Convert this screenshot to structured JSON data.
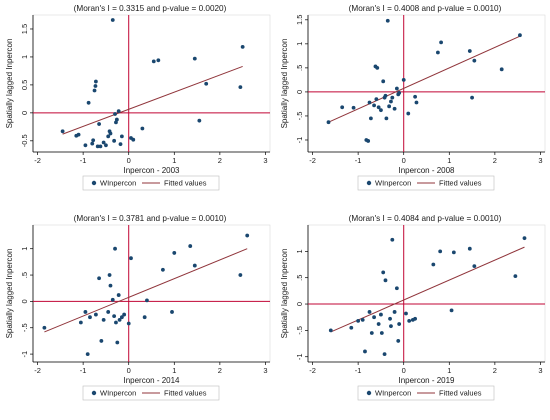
{
  "chart_data": [
    {
      "type": "scatter",
      "title": "(Moran's I = 0.3315 and p-value = 0.0020)",
      "xlabel": "Inpercon - 2003",
      "ylabel": "Spatially lagged Inpercon",
      "xlim": [
        -2.1,
        3.1
      ],
      "ylim": [
        -0.7,
        1.75
      ],
      "xticks": [
        "-2",
        "-1",
        "0",
        "1",
        "2",
        "3"
      ],
      "xtick_values": [
        -2,
        -1,
        0,
        1,
        2,
        3
      ],
      "yticks": [
        "-0.5",
        "0",
        "0.5",
        "1",
        "1.5"
      ],
      "ytick_values": [
        -0.5,
        0,
        0.5,
        1,
        1.5
      ],
      "grid": false,
      "legend_position": "bottom",
      "legend": [
        "WInpercon",
        "Fitted values"
      ],
      "reference_lines": {
        "x": 0,
        "y": 0
      },
      "points": [
        [
          -1.45,
          -0.33
        ],
        [
          -1.15,
          -0.41
        ],
        [
          -1.1,
          -0.39
        ],
        [
          -0.95,
          -0.58
        ],
        [
          -0.88,
          0.18
        ],
        [
          -0.8,
          -0.55
        ],
        [
          -0.78,
          -0.49
        ],
        [
          -0.75,
          0.4
        ],
        [
          -0.73,
          0.48
        ],
        [
          -0.72,
          0.56
        ],
        [
          -0.68,
          -0.6
        ],
        [
          -0.65,
          -0.2
        ],
        [
          -0.62,
          -0.6
        ],
        [
          -0.55,
          -0.53
        ],
        [
          -0.5,
          -0.58
        ],
        [
          -0.45,
          -0.42
        ],
        [
          -0.42,
          -0.33
        ],
        [
          -0.4,
          -0.37
        ],
        [
          -0.35,
          1.66
        ],
        [
          -0.32,
          -0.5
        ],
        [
          -0.3,
          -0.02
        ],
        [
          -0.28,
          -0.17
        ],
        [
          -0.26,
          -0.12
        ],
        [
          -0.22,
          0.03
        ],
        [
          -0.18,
          -0.56
        ],
        [
          -0.15,
          -0.42
        ],
        [
          0.05,
          -0.45
        ],
        [
          0.1,
          -0.48
        ],
        [
          0.3,
          -0.28
        ],
        [
          0.55,
          0.92
        ],
        [
          0.65,
          0.94
        ],
        [
          1.45,
          0.97
        ],
        [
          1.55,
          -0.14
        ],
        [
          1.7,
          0.52
        ],
        [
          2.45,
          0.46
        ],
        [
          2.5,
          1.18
        ]
      ],
      "fitted_line": [
        [
          -1.45,
          -0.38
        ],
        [
          2.5,
          0.83
        ]
      ]
    },
    {
      "type": "scatter",
      "title": "(Moran's I = 0.4008 and p-value = 0.0010)",
      "xlabel": "Inpercon - 2008",
      "ylabel": "Spatially lagged Inpercon",
      "xlim": [
        -2.1,
        3.1
      ],
      "ylim": [
        -1.25,
        1.6
      ],
      "xticks": [
        "-2",
        "-1",
        "0",
        "1",
        "2",
        "3"
      ],
      "xtick_values": [
        -2,
        -1,
        0,
        1,
        2,
        3
      ],
      "yticks": [
        "-1",
        "-.5",
        "0",
        ".5",
        "1",
        "1.5"
      ],
      "ytick_values": [
        -1,
        -0.5,
        0,
        0.5,
        1,
        1.5
      ],
      "grid": false,
      "legend_position": "bottom",
      "legend": [
        "WInpercon",
        "Fitted values"
      ],
      "reference_lines": {
        "x": 0,
        "y": 0
      },
      "points": [
        [
          -1.65,
          -0.63
        ],
        [
          -1.35,
          -0.32
        ],
        [
          -1.1,
          -0.33
        ],
        [
          -0.82,
          -1.0
        ],
        [
          -0.78,
          -1.02
        ],
        [
          -0.75,
          -0.22
        ],
        [
          -0.72,
          -0.55
        ],
        [
          -0.65,
          -0.28
        ],
        [
          -0.62,
          0.53
        ],
        [
          -0.6,
          -0.15
        ],
        [
          -0.58,
          0.5
        ],
        [
          -0.55,
          -0.32
        ],
        [
          -0.5,
          -0.38
        ],
        [
          -0.45,
          0.22
        ],
        [
          -0.42,
          -0.12
        ],
        [
          -0.4,
          -0.08
        ],
        [
          -0.38,
          -0.55
        ],
        [
          -0.35,
          1.48
        ],
        [
          -0.32,
          -0.3
        ],
        [
          -0.28,
          -0.2
        ],
        [
          -0.25,
          -0.12
        ],
        [
          -0.2,
          -0.35
        ],
        [
          -0.15,
          0.07
        ],
        [
          -0.12,
          -0.05
        ],
        [
          -0.1,
          -0.02
        ],
        [
          0.0,
          0.25
        ],
        [
          0.1,
          -0.45
        ],
        [
          0.25,
          -0.1
        ],
        [
          0.28,
          -0.22
        ],
        [
          0.75,
          0.82
        ],
        [
          0.82,
          1.03
        ],
        [
          1.45,
          0.85
        ],
        [
          1.5,
          -0.12
        ],
        [
          1.55,
          0.65
        ],
        [
          2.15,
          0.47
        ],
        [
          2.55,
          1.18
        ]
      ],
      "fitted_line": [
        [
          -1.65,
          -0.63
        ],
        [
          2.55,
          1.16
        ]
      ]
    },
    {
      "type": "scatter",
      "title": "(Moran's I = 0.3781 and p-value = 0.0010)",
      "xlabel": "Inpercon - 2014",
      "ylabel": "Spatially lagged Inpercon",
      "xlim": [
        -2.1,
        3.1
      ],
      "ylim": [
        -1.15,
        1.45
      ],
      "xticks": [
        "-2",
        "-1",
        "0",
        "1",
        "2",
        "3"
      ],
      "xtick_values": [
        -2,
        -1,
        0,
        1,
        2,
        3
      ],
      "yticks": [
        "-1",
        "-.5",
        "0",
        ".5",
        "1"
      ],
      "ytick_values": [
        -1,
        -0.5,
        0,
        0.5,
        1
      ],
      "grid": false,
      "legend_position": "bottom",
      "legend": [
        "WInpercon",
        "Fitted values"
      ],
      "reference_lines": {
        "x": 0,
        "y": 0
      },
      "points": [
        [
          -1.85,
          -0.5
        ],
        [
          -1.05,
          -0.4
        ],
        [
          -0.95,
          -0.2
        ],
        [
          -0.9,
          -1.0
        ],
        [
          -0.85,
          -0.3
        ],
        [
          -0.72,
          -0.25
        ],
        [
          -0.65,
          0.44
        ],
        [
          -0.6,
          -0.75
        ],
        [
          -0.55,
          -0.35
        ],
        [
          -0.45,
          -0.2
        ],
        [
          -0.42,
          0.5
        ],
        [
          -0.4,
          0.3
        ],
        [
          -0.35,
          0.03
        ],
        [
          -0.32,
          -0.28
        ],
        [
          -0.3,
          1.0
        ],
        [
          -0.28,
          -0.4
        ],
        [
          -0.25,
          -0.78
        ],
        [
          -0.22,
          0.12
        ],
        [
          -0.2,
          -0.35
        ],
        [
          -0.15,
          -0.3
        ],
        [
          -0.1,
          -0.25
        ],
        [
          0.0,
          -0.42
        ],
        [
          0.05,
          0.82
        ],
        [
          0.35,
          -0.3
        ],
        [
          0.4,
          0.02
        ],
        [
          0.75,
          0.6
        ],
        [
          0.95,
          -0.2
        ],
        [
          1.0,
          0.92
        ],
        [
          1.35,
          1.05
        ],
        [
          1.45,
          0.68
        ],
        [
          2.45,
          0.5
        ],
        [
          2.6,
          1.25
        ]
      ],
      "fitted_line": [
        [
          -1.85,
          -0.58
        ],
        [
          2.6,
          1.0
        ]
      ]
    },
    {
      "type": "scatter",
      "title": "(Moran's I = 0.4084 and p-value = 0.0010)",
      "xlabel": "Inpercon - 2019",
      "ylabel": "Spatially lagged Inpercon",
      "xlim": [
        -2.1,
        3.1
      ],
      "ylim": [
        -1.1,
        1.5
      ],
      "xticks": [
        "-2",
        "-1",
        "0",
        "1",
        "2",
        "3"
      ],
      "xtick_values": [
        -2,
        -1,
        0,
        1,
        2,
        3
      ],
      "yticks": [
        "-1",
        "-.5",
        "0",
        ".5",
        "1"
      ],
      "ytick_values": [
        -1,
        -0.5,
        0,
        0.5,
        1
      ],
      "grid": false,
      "legend_position": "bottom",
      "legend": [
        "WInpercon",
        "Fitted values"
      ],
      "reference_lines": {
        "x": 0,
        "y": 0
      },
      "points": [
        [
          -1.6,
          -0.5
        ],
        [
          -1.15,
          -0.45
        ],
        [
          -1.0,
          -0.32
        ],
        [
          -0.9,
          -0.3
        ],
        [
          -0.85,
          -0.9
        ],
        [
          -0.75,
          -0.15
        ],
        [
          -0.7,
          -0.55
        ],
        [
          -0.65,
          -0.25
        ],
        [
          -0.55,
          -0.38
        ],
        [
          -0.5,
          -0.2
        ],
        [
          -0.48,
          -0.55
        ],
        [
          -0.45,
          0.6
        ],
        [
          -0.42,
          -0.95
        ],
        [
          -0.4,
          0.45
        ],
        [
          -0.3,
          -0.28
        ],
        [
          -0.28,
          -0.42
        ],
        [
          -0.25,
          1.22
        ],
        [
          -0.2,
          -0.15
        ],
        [
          -0.15,
          0.3
        ],
        [
          -0.12,
          -0.7
        ],
        [
          -0.1,
          -0.38
        ],
        [
          0.05,
          -0.18
        ],
        [
          0.12,
          -0.32
        ],
        [
          0.2,
          -0.3
        ],
        [
          0.25,
          -0.28
        ],
        [
          0.65,
          0.75
        ],
        [
          0.8,
          1.0
        ],
        [
          1.05,
          -0.12
        ],
        [
          1.1,
          0.98
        ],
        [
          1.45,
          1.05
        ],
        [
          1.55,
          0.72
        ],
        [
          2.45,
          0.53
        ],
        [
          2.65,
          1.25
        ]
      ],
      "fitted_line": [
        [
          -1.6,
          -0.53
        ],
        [
          2.65,
          1.08
        ]
      ]
    }
  ],
  "colors": {
    "points": "#1a476f",
    "fitted_line": "#90353b",
    "reference_line": "#c10534",
    "axis": "#000000",
    "text": "#1a1a1a"
  }
}
